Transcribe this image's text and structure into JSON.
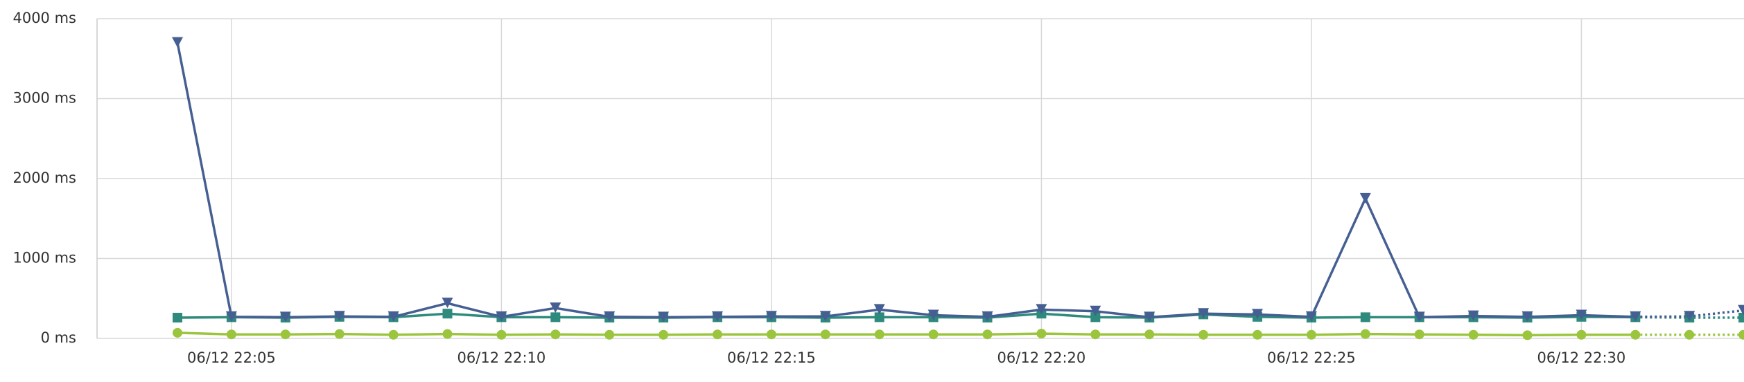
{
  "chart_data": {
    "type": "line",
    "x": [
      "06/12 22:04",
      "06/12 22:05",
      "06/12 22:06",
      "06/12 22:07",
      "06/12 22:08",
      "06/12 22:09",
      "06/12 22:10",
      "06/12 22:11",
      "06/12 22:12",
      "06/12 22:13",
      "06/12 22:14",
      "06/12 22:15",
      "06/12 22:16",
      "06/12 22:17",
      "06/12 22:18",
      "06/12 22:19",
      "06/12 22:20",
      "06/12 22:21",
      "06/12 22:22",
      "06/12 22:23",
      "06/12 22:24",
      "06/12 22:25",
      "06/12 22:26",
      "06/12 22:27",
      "06/12 22:28",
      "06/12 22:29",
      "06/12 22:30",
      "06/12 22:31",
      "06/12 22:32",
      "06/12 22:33"
    ],
    "xticks": [
      "06/12 22:05",
      "06/12 22:10",
      "06/12 22:15",
      "06/12 22:20",
      "06/12 22:25",
      "06/12 22:30"
    ],
    "dotted_from": "06/12 22:31",
    "series": [
      {
        "color": "#9bc53d",
        "marker": "circle",
        "values": [
          70,
          50,
          50,
          55,
          45,
          55,
          45,
          50,
          45,
          45,
          50,
          50,
          50,
          50,
          50,
          50,
          60,
          50,
          50,
          45,
          45,
          45,
          55,
          50,
          45,
          40,
          45,
          45,
          45,
          45
        ]
      },
      {
        "color": "#2e8a7c",
        "marker": "square",
        "values": [
          260,
          265,
          260,
          270,
          265,
          310,
          265,
          265,
          260,
          260,
          265,
          265,
          260,
          265,
          265,
          260,
          310,
          265,
          260,
          300,
          270,
          260,
          265,
          265,
          265,
          260,
          270,
          265,
          260,
          260
        ]
      },
      {
        "color": "#465f92",
        "marker": "triangle-down",
        "values": [
          3700,
          270,
          265,
          275,
          270,
          440,
          270,
          380,
          270,
          265,
          270,
          275,
          275,
          360,
          290,
          270,
          360,
          340,
          265,
          310,
          300,
          270,
          1750,
          265,
          280,
          270,
          290,
          270,
          275,
          350
        ]
      }
    ],
    "ylim": [
      0,
      4000
    ],
    "yticks": [
      {
        "value": 0,
        "label": "0 ms"
      },
      {
        "value": 1000,
        "label": "1000 ms"
      },
      {
        "value": 2000,
        "label": "2000 ms"
      },
      {
        "value": 3000,
        "label": "3000 ms"
      },
      {
        "value": 4000,
        "label": "4000 ms"
      }
    ],
    "grid": true
  }
}
